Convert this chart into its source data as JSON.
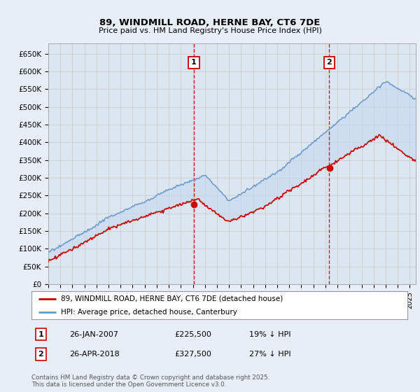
{
  "title": "89, WINDMILL ROAD, HERNE BAY, CT6 7DE",
  "subtitle": "Price paid vs. HM Land Registry's House Price Index (HPI)",
  "background_color": "#dce6f1",
  "outer_bg_color": "#e8eef7",
  "ylim": [
    0,
    680000
  ],
  "yticks": [
    0,
    50000,
    100000,
    150000,
    200000,
    250000,
    300000,
    350000,
    400000,
    450000,
    500000,
    550000,
    600000,
    650000
  ],
  "ytick_labels": [
    "£0",
    "£50K",
    "£100K",
    "£150K",
    "£200K",
    "£250K",
    "£300K",
    "£350K",
    "£400K",
    "£450K",
    "£500K",
    "£550K",
    "£600K",
    "£650K"
  ],
  "xlim_start": 1995.0,
  "xlim_end": 2025.5,
  "transaction1_date": "26-JAN-2007",
  "transaction1_price": 225500,
  "transaction1_x": 2007.07,
  "transaction1_label": "£225,500",
  "transaction1_hpi": "19% ↓ HPI",
  "transaction2_date": "26-APR-2018",
  "transaction2_price": 327500,
  "transaction2_x": 2018.32,
  "transaction2_label": "£327,500",
  "transaction2_hpi": "27% ↓ HPI",
  "red_line_color": "#cc0000",
  "blue_line_color": "#6699cc",
  "fill_color": "#c5d8f0",
  "grid_color": "#cccccc",
  "legend_label_red": "89, WINDMILL ROAD, HERNE BAY, CT6 7DE (detached house)",
  "legend_label_blue": "HPI: Average price, detached house, Canterbury",
  "footer": "Contains HM Land Registry data © Crown copyright and database right 2025.\nThis data is licensed under the Open Government Licence v3.0."
}
